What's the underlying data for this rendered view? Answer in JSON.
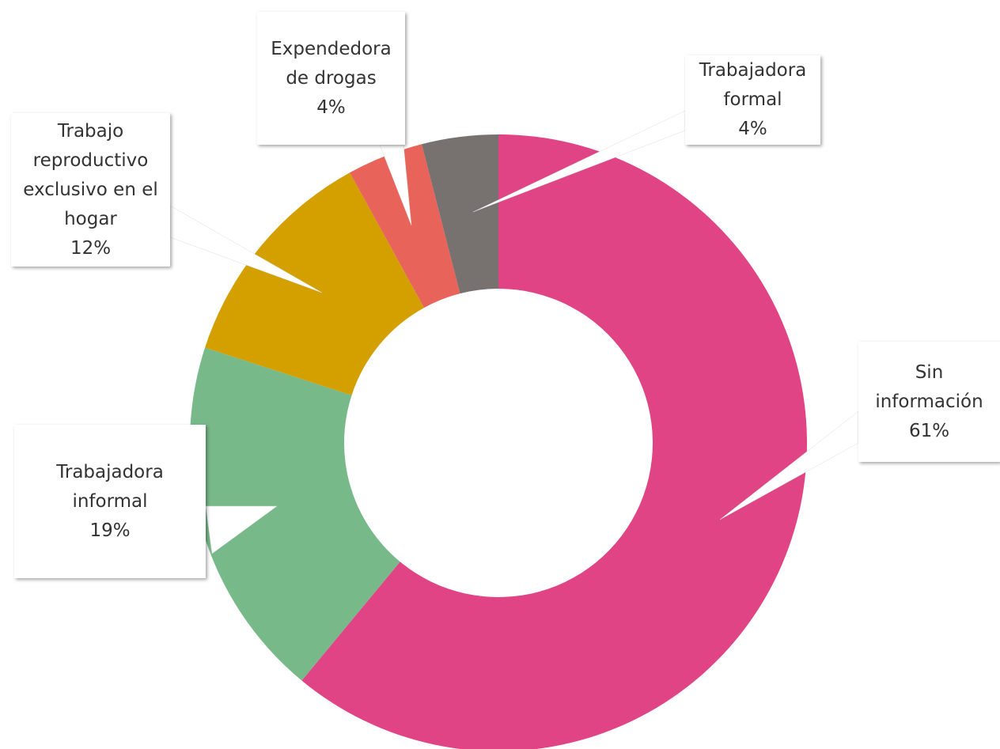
{
  "chart_data": {
    "type": "pie",
    "categories": [
      "Sin información",
      "Trabajadora informal",
      "Trabajo reproductivo exclusivo en el hogar",
      "Expendedora de drogas",
      "Trabajadora formal"
    ],
    "values": [
      61,
      19,
      12,
      4,
      4
    ],
    "value_labels": [
      "61%",
      "19%",
      "12%",
      "4%",
      "4%"
    ],
    "colors": [
      "#e04485",
      "#78b989",
      "#d3a000",
      "#e8635a",
      "#77716f"
    ]
  }
}
